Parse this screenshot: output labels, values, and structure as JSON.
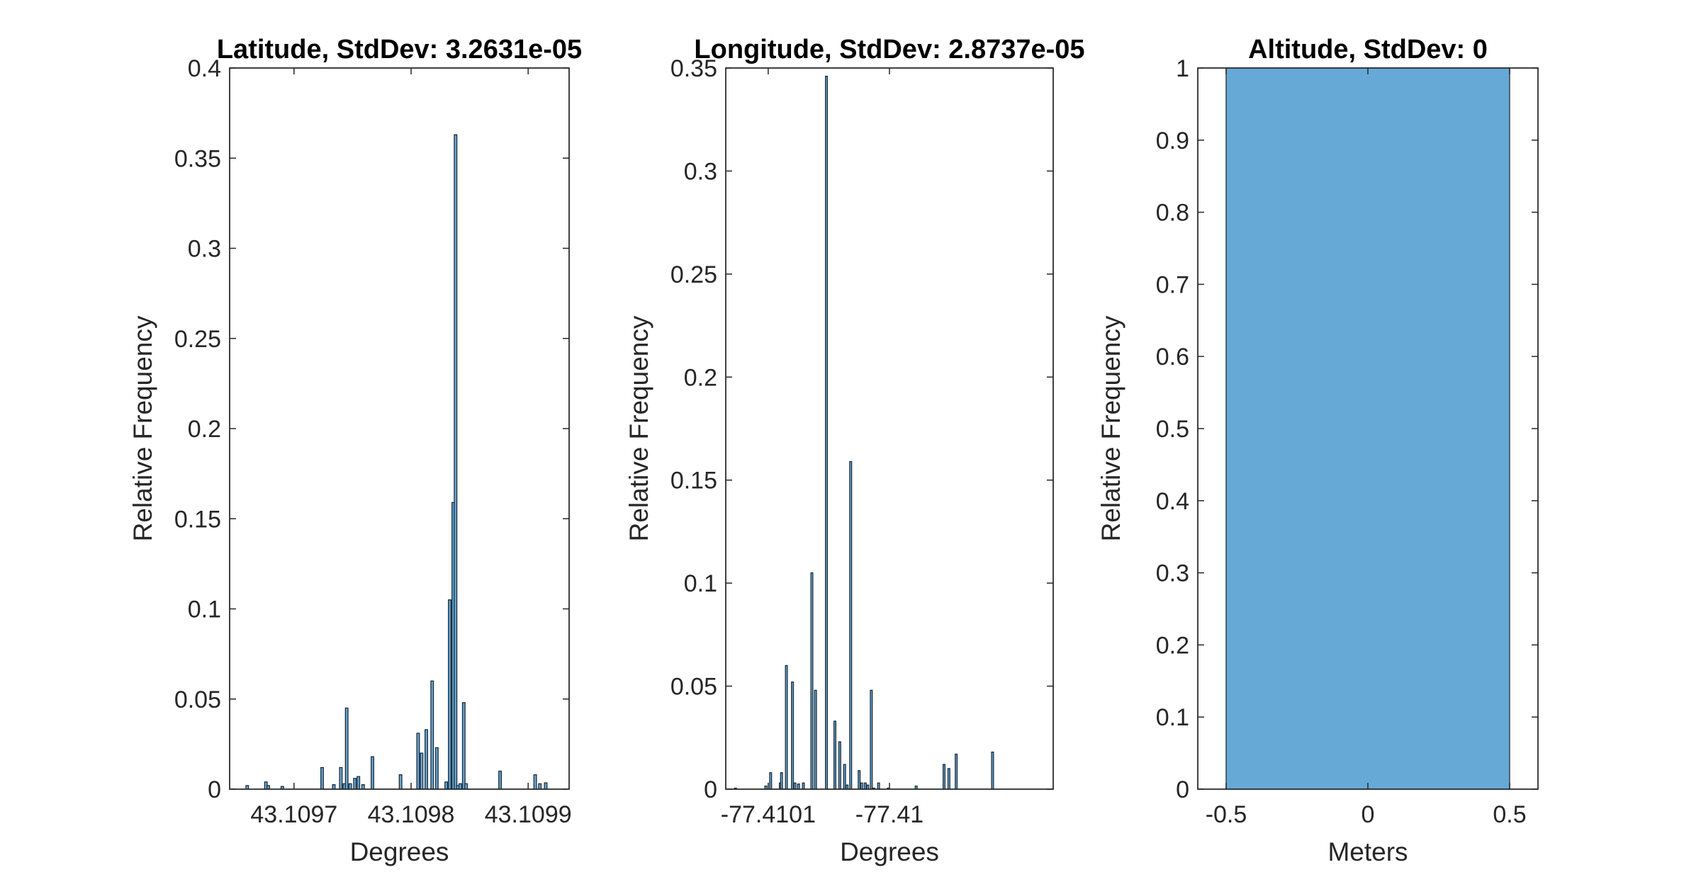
{
  "chart_data": [
    {
      "type": "bar",
      "title": "Latitude, StdDev: 3.2631e-05",
      "xlabel": "Degrees",
      "ylabel": "Relative Frequency",
      "xlim": [
        43.109645,
        43.109935
      ],
      "ylim": [
        0,
        0.4
      ],
      "yticks": [
        0,
        0.05,
        0.1,
        0.15,
        0.2,
        0.25,
        0.3,
        0.35,
        0.4
      ],
      "ytick_labels": [
        "0",
        "0.05",
        "0.1",
        "0.15",
        "0.2",
        "0.25",
        "0.3",
        "0.35",
        "0.4"
      ],
      "xticks": [
        43.1097,
        43.1098,
        43.1099
      ],
      "xtick_labels": [
        "43.1097",
        "43.1098",
        "43.1099"
      ],
      "bar_width": 2.2e-06,
      "x": [
        43.10966,
        43.109676,
        43.109678,
        43.10969,
        43.109724,
        43.109734,
        43.10974,
        43.109743,
        43.109745,
        43.109748,
        43.109752,
        43.109755,
        43.109759,
        43.109767,
        43.109791,
        43.109806,
        43.109809,
        43.109813,
        43.109818,
        43.109822,
        43.10983,
        43.109833,
        43.109836,
        43.109838,
        43.10984,
        43.109842,
        43.109845,
        43.109847,
        43.109876,
        43.109906,
        43.10991,
        43.109915
      ],
      "values": [
        0.002,
        0.004,
        0.002,
        0.0015,
        0.012,
        0.0025,
        0.012,
        0.003,
        0.045,
        0.003,
        0.006,
        0.007,
        0.0025,
        0.018,
        0.008,
        0.031,
        0.02,
        0.033,
        0.06,
        0.023,
        0.004,
        0.105,
        0.159,
        0.363,
        0.002,
        0.003,
        0.048,
        0.003,
        0.01,
        0.008,
        0.003,
        0.0035
      ]
    },
    {
      "type": "bar",
      "title": "Longitude, StdDev: 2.8737e-05",
      "xlabel": "Degrees",
      "ylabel": "Relative Frequency",
      "xlim": [
        -77.410135,
        -77.409865
      ],
      "ylim": [
        0,
        0.35
      ],
      "yticks": [
        0,
        0.05,
        0.1,
        0.15,
        0.2,
        0.25,
        0.3,
        0.35
      ],
      "ytick_labels": [
        "0",
        "0.05",
        "0.1",
        "0.15",
        "0.2",
        "0.25",
        "0.3",
        "0.35"
      ],
      "xticks": [
        -77.4101,
        -77.41
      ],
      "xtick_labels": [
        "-77.4101",
        "-77.41"
      ],
      "bar_width": 1.6e-06,
      "x": [
        -77.410127,
        -77.410102,
        -77.410098,
        -77.41009,
        -77.410089,
        -77.410085,
        -77.41008,
        -77.410078,
        -77.410075,
        -77.410071,
        -77.410064,
        -77.410061,
        -77.410052,
        -77.410045,
        -77.410041,
        -77.410037,
        -77.410035,
        -77.410032,
        -77.410025,
        -77.410023,
        -77.41002,
        -77.410018,
        -77.410015,
        -77.410013,
        -77.410009,
        -77.410001,
        -77.409978,
        -77.409955,
        -77.409951,
        -77.409945,
        -77.409915
      ],
      "values": [
        0.0005,
        0.0015,
        0.008,
        0.003,
        0.008,
        0.06,
        0.052,
        0.003,
        0.0025,
        0.003,
        0.105,
        0.048,
        0.346,
        0.033,
        0.023,
        0.012,
        0.002,
        0.159,
        0.009,
        0.003,
        0.003,
        0.002,
        0.048,
        0.0005,
        0.003,
        0.0005,
        0.0015,
        0.012,
        0.01,
        0.017,
        0.018
      ]
    },
    {
      "type": "bar",
      "title": "Altitude, StdDev: 0",
      "xlabel": "Meters",
      "ylabel": "Relative Frequency",
      "xlim": [
        -0.6,
        0.6
      ],
      "ylim": [
        0,
        1
      ],
      "yticks": [
        0,
        0.1,
        0.2,
        0.3,
        0.4,
        0.5,
        0.6,
        0.7,
        0.8,
        0.9,
        1
      ],
      "ytick_labels": [
        "0",
        "0.1",
        "0.2",
        "0.3",
        "0.4",
        "0.5",
        "0.6",
        "0.7",
        "0.8",
        "0.9",
        "1"
      ],
      "xticks": [
        -0.5,
        0,
        0.5
      ],
      "xtick_labels": [
        "-0.5",
        "0",
        "0.5"
      ],
      "bar_width": 1,
      "x": [
        0
      ],
      "values": [
        1
      ]
    }
  ],
  "colors": {
    "bar_fill": "#66a9d6",
    "bar_edge": "#1f2d3a",
    "axis": "#262626"
  }
}
